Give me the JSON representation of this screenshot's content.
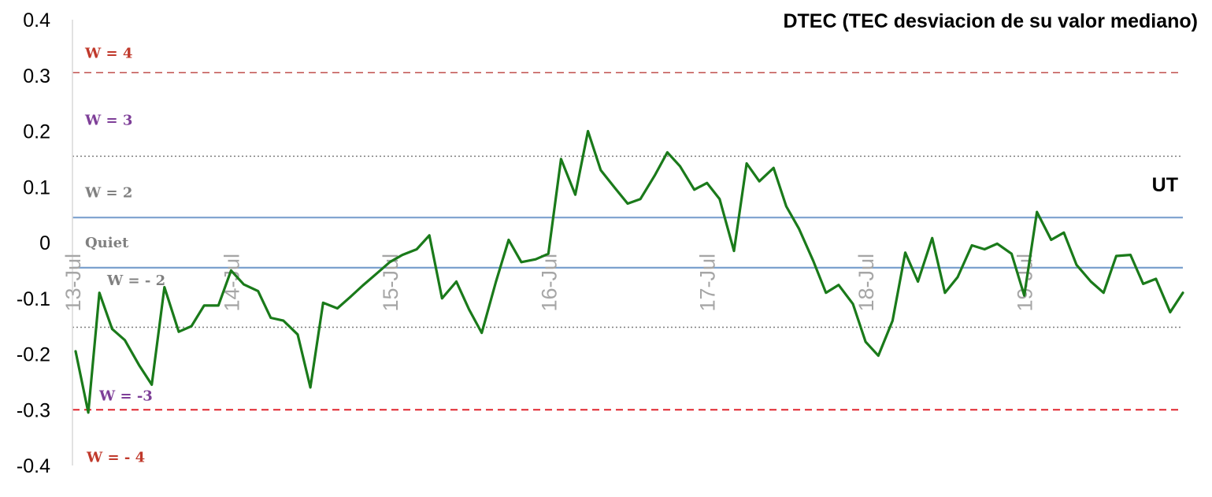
{
  "chart_data": {
    "type": "line",
    "title": "DTEC (TEC desviacion de su valor mediano)",
    "xlabel": "UT",
    "ylabel": "",
    "ylim": [
      -0.4,
      0.4
    ],
    "yticks": [
      0.4,
      0.3,
      0.2,
      0.1,
      0,
      -0.1,
      -0.2,
      -0.3,
      -0.4
    ],
    "ytick_labels": [
      "0.4",
      "0.3",
      "0.2",
      "0.1",
      "0",
      "-0.1",
      "-0.2",
      "-0.3",
      "-0.4"
    ],
    "xlim": [
      13.0,
      20.0
    ],
    "xticks": [
      13,
      14,
      15,
      16,
      17,
      18,
      19
    ],
    "xtick_labels": [
      "13-Jul",
      "14-Jul",
      "15-Jul",
      "16-Jul",
      "17-Jul",
      "18-Jul",
      "19-Jul"
    ],
    "grid": false,
    "series": [
      {
        "color": "#1a7a1a",
        "points": [
          [
            13.02,
            -0.195
          ],
          [
            13.1,
            -0.305
          ],
          [
            13.17,
            -0.09
          ],
          [
            13.25,
            -0.155
          ],
          [
            13.33,
            -0.175
          ],
          [
            13.42,
            -0.22
          ],
          [
            13.5,
            -0.255
          ],
          [
            13.58,
            -0.08
          ],
          [
            13.67,
            -0.16
          ],
          [
            13.75,
            -0.15
          ],
          [
            13.83,
            -0.113
          ],
          [
            13.92,
            -0.113
          ],
          [
            14.0,
            -0.05
          ],
          [
            14.08,
            -0.075
          ],
          [
            14.17,
            -0.087
          ],
          [
            14.25,
            -0.135
          ],
          [
            14.33,
            -0.14
          ],
          [
            14.42,
            -0.165
          ],
          [
            14.5,
            -0.26
          ],
          [
            14.58,
            -0.108
          ],
          [
            14.67,
            -0.118
          ],
          [
            14.75,
            -0.098
          ],
          [
            14.83,
            -0.077
          ],
          [
            14.92,
            -0.055
          ],
          [
            15.0,
            -0.035
          ],
          [
            15.08,
            -0.022
          ],
          [
            15.17,
            -0.012
          ],
          [
            15.25,
            0.013
          ],
          [
            15.33,
            -0.1
          ],
          [
            15.42,
            -0.07
          ],
          [
            15.5,
            -0.12
          ],
          [
            15.58,
            -0.162
          ],
          [
            15.67,
            -0.07
          ],
          [
            15.75,
            0.005
          ],
          [
            15.83,
            -0.035
          ],
          [
            15.92,
            -0.03
          ],
          [
            16.0,
            -0.02
          ],
          [
            16.08,
            0.15
          ],
          [
            16.17,
            0.086
          ],
          [
            16.25,
            0.2
          ],
          [
            16.33,
            0.13
          ],
          [
            16.42,
            0.098
          ],
          [
            16.5,
            0.07
          ],
          [
            16.58,
            0.078
          ],
          [
            16.67,
            0.12
          ],
          [
            16.75,
            0.162
          ],
          [
            16.83,
            0.137
          ],
          [
            16.92,
            0.095
          ],
          [
            17.0,
            0.107
          ],
          [
            17.08,
            0.078
          ],
          [
            17.17,
            -0.015
          ],
          [
            17.25,
            0.142
          ],
          [
            17.33,
            0.11
          ],
          [
            17.42,
            0.134
          ],
          [
            17.5,
            0.065
          ],
          [
            17.58,
            0.025
          ],
          [
            17.67,
            -0.033
          ],
          [
            17.75,
            -0.09
          ],
          [
            17.83,
            -0.076
          ],
          [
            17.92,
            -0.11
          ],
          [
            18.0,
            -0.178
          ],
          [
            18.08,
            -0.203
          ],
          [
            18.17,
            -0.14
          ],
          [
            18.25,
            -0.018
          ],
          [
            18.33,
            -0.07
          ],
          [
            18.42,
            0.008
          ],
          [
            18.5,
            -0.09
          ],
          [
            18.58,
            -0.062
          ],
          [
            18.67,
            -0.005
          ],
          [
            18.75,
            -0.012
          ],
          [
            18.83,
            -0.002
          ],
          [
            18.92,
            -0.02
          ],
          [
            19.0,
            -0.095
          ],
          [
            19.08,
            0.055
          ],
          [
            19.17,
            0.005
          ],
          [
            19.25,
            0.018
          ],
          [
            19.33,
            -0.04
          ],
          [
            19.42,
            -0.07
          ],
          [
            19.5,
            -0.09
          ],
          [
            19.58,
            -0.024
          ],
          [
            19.67,
            -0.022
          ],
          [
            19.75,
            -0.074
          ],
          [
            19.83,
            -0.065
          ],
          [
            19.92,
            -0.125
          ],
          [
            20.0,
            -0.09
          ]
        ]
      }
    ],
    "reference_lines": [
      {
        "label": "W = 4",
        "y": 0.305,
        "color": "#c0504d",
        "style": "dashed"
      },
      {
        "label": "W = 3",
        "y": 0.155,
        "color": "#7f7f7f",
        "style": "dotted"
      },
      {
        "label": "W = 2",
        "y": 0.045,
        "color": "#4f81bd",
        "style": "solid"
      },
      {
        "label": "Quiet",
        "y": -0.045,
        "color": "#4f81bd",
        "style": "solid"
      },
      {
        "label": "W = - 2",
        "y": -0.152,
        "color": "#7f7f7f",
        "style": "dotted"
      },
      {
        "label": "W = -3",
        "y": -0.3,
        "color": "#e0262f",
        "style": "dashed"
      }
    ],
    "band_labels": [
      {
        "text": "W = 4",
        "color": "#c0392b",
        "y": 0.34
      },
      {
        "text": "W = 3",
        "color": "#7e3f98",
        "y": 0.22
      },
      {
        "text": "W = 2",
        "color": "#808080",
        "y": 0.09
      },
      {
        "text": "Quiet",
        "color": "#808080",
        "y": 0.0
      },
      {
        "text": "W = - 2",
        "color": "#808080",
        "y": -0.068
      },
      {
        "text": "W = -3",
        "color": "#7e3f98",
        "y": -0.275
      },
      {
        "text": "W = - 4",
        "color": "#c0392b",
        "y": -0.385
      }
    ]
  }
}
